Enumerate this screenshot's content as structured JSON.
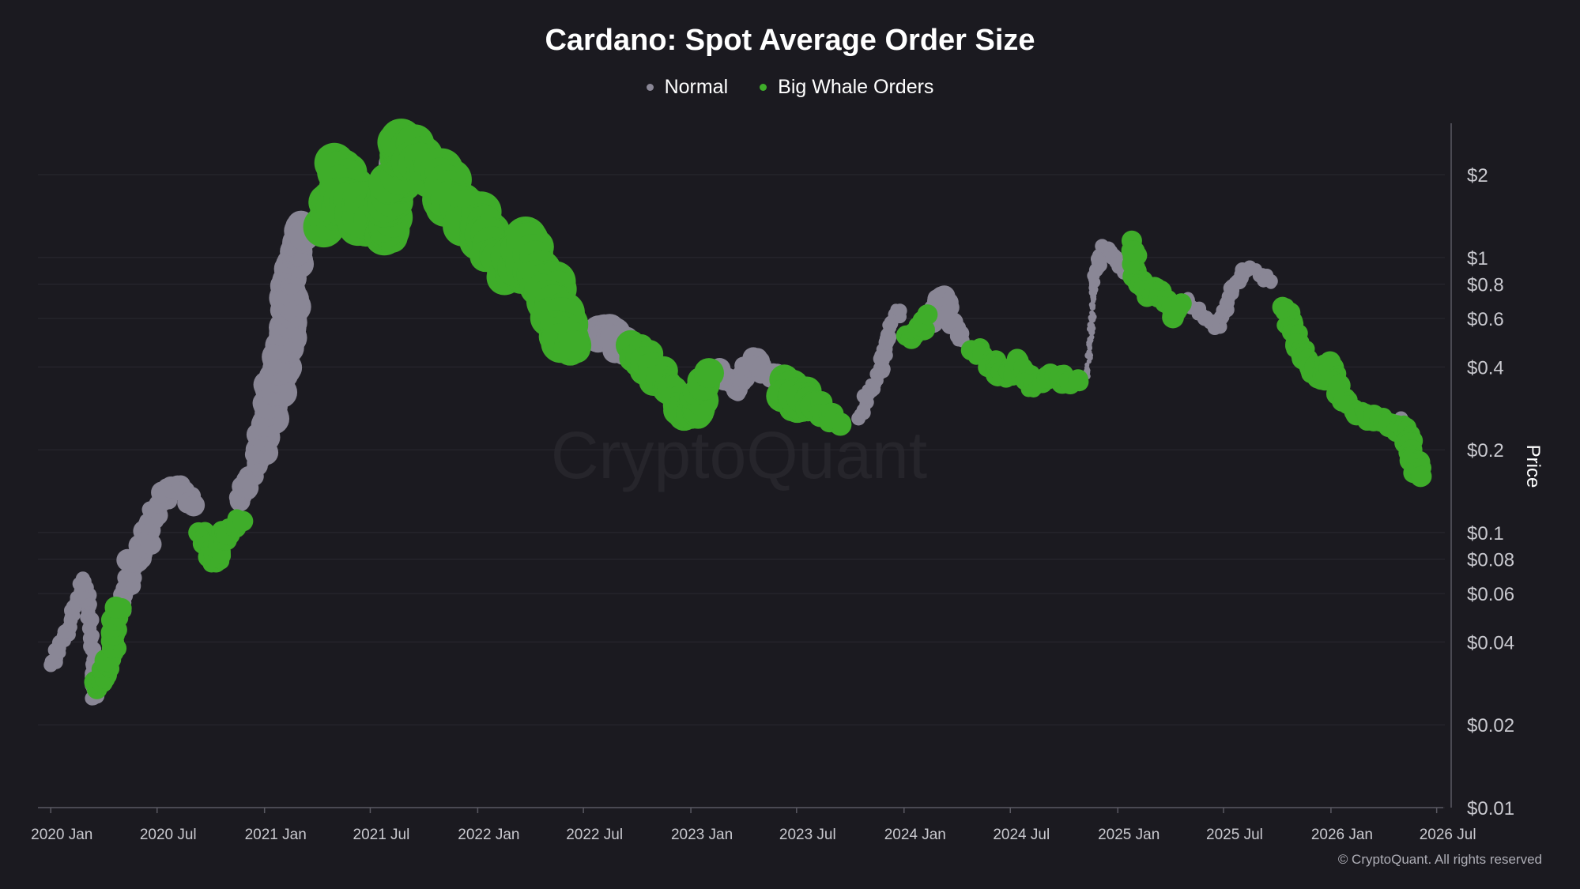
{
  "colors": {
    "background": "#1b1a20",
    "normal": "#8a8796",
    "whale": "#3fad2a",
    "grid": "#2a2930",
    "axis": "#5a5962",
    "text": "#ffffff",
    "tick_text": "#c9c9cf",
    "watermark": "#26252b"
  },
  "watermark": "CryptoQuant",
  "copyright": "© CryptoQuant. All rights reserved",
  "chart_data": {
    "type": "scatter",
    "title": "Cardano: Spot Average Order Size",
    "ylabel": "Price",
    "yscale": "log",
    "ylim": [
      0.01,
      3.2
    ],
    "xlim": [
      "2019-12-10",
      "2026-07-15"
    ],
    "grid": "horizontal",
    "legend_position": "top-center",
    "x_ticks": [
      {
        "label": "2020 Jan",
        "date": "2020-01-01"
      },
      {
        "label": "2020 Jul",
        "date": "2020-07-01"
      },
      {
        "label": "2021 Jan",
        "date": "2021-01-01"
      },
      {
        "label": "2021 Jul",
        "date": "2021-07-01"
      },
      {
        "label": "2022 Jan",
        "date": "2022-01-01"
      },
      {
        "label": "2022 Jul",
        "date": "2022-07-01"
      },
      {
        "label": "2023 Jan",
        "date": "2023-01-01"
      },
      {
        "label": "2023 Jul",
        "date": "2023-07-01"
      },
      {
        "label": "2024 Jan",
        "date": "2024-01-01"
      },
      {
        "label": "2024 Jul",
        "date": "2024-07-01"
      },
      {
        "label": "2025 Jan",
        "date": "2025-01-01"
      },
      {
        "label": "2025 Jul",
        "date": "2025-07-01"
      },
      {
        "label": "2026 Jan",
        "date": "2026-01-01"
      },
      {
        "label": "2026 Jul",
        "date": "2026-07-01"
      }
    ],
    "y_ticks": [
      {
        "label": "$2",
        "value": 2
      },
      {
        "label": "$1",
        "value": 1
      },
      {
        "label": "$0.8",
        "value": 0.8
      },
      {
        "label": "$0.6",
        "value": 0.6
      },
      {
        "label": "$0.4",
        "value": 0.4
      },
      {
        "label": "$0.2",
        "value": 0.2
      },
      {
        "label": "$0.1",
        "value": 0.1
      },
      {
        "label": "$0.08",
        "value": 0.08
      },
      {
        "label": "$0.06",
        "value": 0.06
      },
      {
        "label": "$0.04",
        "value": 0.04
      },
      {
        "label": "$0.02",
        "value": 0.02
      },
      {
        "label": "$0.01",
        "value": 0.01
      }
    ],
    "series": [
      {
        "name": "Normal",
        "color": "#8a8796",
        "points": [
          [
            "2020-01-01",
            0.033,
            "small"
          ],
          [
            "2020-01-15",
            0.038,
            "small"
          ],
          [
            "2020-02-01",
            0.045,
            "small"
          ],
          [
            "2020-02-15",
            0.058,
            "small"
          ],
          [
            "2020-02-25",
            0.068,
            "small"
          ],
          [
            "2020-03-05",
            0.058,
            "small"
          ],
          [
            "2020-03-12",
            0.042,
            "small"
          ],
          [
            "2020-03-14",
            0.025,
            "small"
          ],
          [
            "2020-03-20",
            0.028,
            "small"
          ],
          [
            "2020-05-01",
            0.052,
            "small"
          ],
          [
            "2020-05-20",
            0.078,
            "medium"
          ],
          [
            "2020-06-10",
            0.088,
            "medium"
          ],
          [
            "2020-06-25",
            0.115,
            "medium"
          ],
          [
            "2020-07-10",
            0.13,
            "medium"
          ],
          [
            "2020-07-25",
            0.145,
            "medium"
          ],
          [
            "2020-08-05",
            0.148,
            "medium"
          ],
          [
            "2020-08-20",
            0.138,
            "medium"
          ],
          [
            "2020-09-01",
            0.125,
            "medium"
          ],
          [
            "2020-11-20",
            0.13,
            "medium"
          ],
          [
            "2020-12-05",
            0.16,
            "medium"
          ],
          [
            "2020-12-20",
            0.175,
            "medium"
          ],
          [
            "2021-01-05",
            0.25,
            "large"
          ],
          [
            "2021-01-15",
            0.33,
            "large"
          ],
          [
            "2021-01-25",
            0.36,
            "large"
          ],
          [
            "2021-02-05",
            0.5,
            "large"
          ],
          [
            "2021-02-15",
            0.75,
            "large"
          ],
          [
            "2021-02-22",
            1.05,
            "large"
          ],
          [
            "2021-03-01",
            1.25,
            "large"
          ],
          [
            "2021-03-10",
            1.2,
            "large"
          ],
          [
            "2021-08-15",
            2.0,
            "large"
          ],
          [
            "2021-08-25",
            2.5,
            "large"
          ],
          [
            "2021-09-02",
            2.7,
            "large"
          ],
          [
            "2021-09-10",
            2.5,
            "large"
          ],
          [
            "2021-09-25",
            2.2,
            "large"
          ],
          [
            "2021-11-15",
            1.8,
            "large"
          ],
          [
            "2022-04-10",
            1.0,
            "large"
          ],
          [
            "2022-07-20",
            0.52,
            "large"
          ],
          [
            "2022-08-15",
            0.55,
            "large"
          ],
          [
            "2022-09-10",
            0.46,
            "large"
          ],
          [
            "2022-12-05",
            0.32,
            "medium"
          ],
          [
            "2022-12-20",
            0.29,
            "medium"
          ],
          [
            "2023-02-15",
            0.39,
            "medium"
          ],
          [
            "2023-03-05",
            0.36,
            "medium"
          ],
          [
            "2023-03-20",
            0.33,
            "medium"
          ],
          [
            "2023-04-10",
            0.4,
            "medium"
          ],
          [
            "2023-04-25",
            0.43,
            "medium"
          ],
          [
            "2023-05-10",
            0.38,
            "medium"
          ],
          [
            "2023-06-01",
            0.37,
            "medium"
          ],
          [
            "2023-10-15",
            0.26,
            "small"
          ],
          [
            "2023-11-01",
            0.32,
            "small"
          ],
          [
            "2023-11-20",
            0.38,
            "small"
          ],
          [
            "2023-12-10",
            0.58,
            "small"
          ],
          [
            "2023-12-25",
            0.64,
            "small"
          ],
          [
            "2024-02-20",
            0.58,
            "medium"
          ],
          [
            "2024-03-05",
            0.72,
            "medium"
          ],
          [
            "2024-03-15",
            0.62,
            "medium"
          ],
          [
            "2024-04-10",
            0.5,
            "small"
          ],
          [
            "2024-11-10",
            0.37,
            "tiny"
          ],
          [
            "2024-11-15",
            0.5,
            "tiny"
          ],
          [
            "2024-11-20",
            0.72,
            "tiny"
          ],
          [
            "2024-11-25",
            0.9,
            "small"
          ],
          [
            "2024-12-05",
            1.1,
            "small"
          ],
          [
            "2024-12-20",
            1.05,
            "small"
          ],
          [
            "2025-01-05",
            0.95,
            "small"
          ],
          [
            "2025-01-20",
            0.88,
            "small"
          ],
          [
            "2025-05-01",
            0.7,
            "small"
          ],
          [
            "2025-05-15",
            0.65,
            "small"
          ],
          [
            "2025-06-10",
            0.58,
            "small"
          ],
          [
            "2025-06-25",
            0.56,
            "small"
          ],
          [
            "2025-07-10",
            0.72,
            "small"
          ],
          [
            "2025-07-25",
            0.82,
            "small"
          ],
          [
            "2025-08-15",
            0.92,
            "small"
          ],
          [
            "2025-09-01",
            0.86,
            "small"
          ],
          [
            "2025-09-20",
            0.82,
            "small"
          ],
          [
            "2026-05-01",
            0.26,
            "small"
          ]
        ]
      },
      {
        "name": "Big Whale Orders",
        "color": "#3fad2a",
        "points": [
          [
            "2020-03-20",
            0.027,
            "medium"
          ],
          [
            "2020-04-05",
            0.033,
            "medium"
          ],
          [
            "2020-04-15",
            0.038,
            "medium"
          ],
          [
            "2020-04-22",
            0.048,
            "medium"
          ],
          [
            "2020-05-01",
            0.053,
            "medium"
          ],
          [
            "2020-09-10",
            0.1,
            "medium"
          ],
          [
            "2020-09-25",
            0.09,
            "medium"
          ],
          [
            "2020-10-10",
            0.078,
            "medium"
          ],
          [
            "2020-10-25",
            0.1,
            "medium"
          ],
          [
            "2020-11-10",
            0.105,
            "medium"
          ],
          [
            "2020-11-25",
            0.11,
            "medium"
          ],
          [
            "2021-04-15",
            1.3,
            "huge"
          ],
          [
            "2021-05-01",
            1.5,
            "huge"
          ],
          [
            "2021-05-15",
            2.1,
            "huge"
          ],
          [
            "2021-05-25",
            1.6,
            "huge"
          ],
          [
            "2021-06-10",
            1.3,
            "huge"
          ],
          [
            "2021-06-25",
            1.6,
            "huge"
          ],
          [
            "2021-07-10",
            1.4,
            "huge"
          ],
          [
            "2021-07-25",
            1.2,
            "huge"
          ],
          [
            "2021-08-10",
            1.7,
            "huge"
          ],
          [
            "2021-08-20",
            2.3,
            "huge"
          ],
          [
            "2021-08-30",
            2.6,
            "huge"
          ],
          [
            "2021-10-05",
            2.1,
            "huge"
          ],
          [
            "2021-11-01",
            2.0,
            "huge"
          ],
          [
            "2021-11-20",
            1.6,
            "huge"
          ],
          [
            "2021-12-10",
            1.4,
            "huge"
          ],
          [
            "2022-01-05",
            1.3,
            "huge"
          ],
          [
            "2022-01-25",
            1.1,
            "huge"
          ],
          [
            "2022-02-15",
            1.0,
            "huge"
          ],
          [
            "2022-03-05",
            0.88,
            "huge"
          ],
          [
            "2022-03-25",
            1.15,
            "huge"
          ],
          [
            "2022-04-20",
            0.9,
            "huge"
          ],
          [
            "2022-05-10",
            0.65,
            "huge"
          ],
          [
            "2022-05-25",
            0.52,
            "huge"
          ],
          [
            "2022-06-15",
            0.48,
            "large"
          ],
          [
            "2022-09-20",
            0.48,
            "large"
          ],
          [
            "2022-10-15",
            0.42,
            "large"
          ],
          [
            "2022-11-10",
            0.36,
            "large"
          ],
          [
            "2022-11-25",
            0.33,
            "large"
          ],
          [
            "2023-01-01",
            0.27,
            "large"
          ],
          [
            "2023-01-20",
            0.34,
            "large"
          ],
          [
            "2023-02-01",
            0.38,
            "large"
          ],
          [
            "2023-06-10",
            0.36,
            "large"
          ],
          [
            "2023-06-25",
            0.29,
            "large"
          ],
          [
            "2023-07-10",
            0.31,
            "large"
          ],
          [
            "2023-08-01",
            0.29,
            "large"
          ],
          [
            "2023-08-25",
            0.27,
            "medium"
          ],
          [
            "2023-09-15",
            0.25,
            "medium"
          ],
          [
            "2024-01-05",
            0.52,
            "medium"
          ],
          [
            "2024-01-25",
            0.55,
            "medium"
          ],
          [
            "2024-02-10",
            0.62,
            "medium"
          ],
          [
            "2024-04-25",
            0.46,
            "medium"
          ],
          [
            "2024-05-15",
            0.44,
            "medium"
          ],
          [
            "2024-06-05",
            0.4,
            "medium"
          ],
          [
            "2024-06-25",
            0.37,
            "medium"
          ],
          [
            "2024-07-15",
            0.42,
            "medium"
          ],
          [
            "2024-08-05",
            0.34,
            "medium"
          ],
          [
            "2024-08-25",
            0.35,
            "medium"
          ],
          [
            "2024-09-15",
            0.37,
            "medium"
          ],
          [
            "2024-10-05",
            0.35,
            "medium"
          ],
          [
            "2024-10-25",
            0.36,
            "medium"
          ],
          [
            "2025-01-25",
            1.15,
            "medium"
          ],
          [
            "2025-02-05",
            0.8,
            "medium"
          ],
          [
            "2025-02-20",
            0.72,
            "medium"
          ],
          [
            "2025-03-05",
            0.78,
            "medium"
          ],
          [
            "2025-03-20",
            0.7,
            "medium"
          ],
          [
            "2025-04-05",
            0.62,
            "medium"
          ],
          [
            "2025-04-20",
            0.68,
            "medium"
          ],
          [
            "2025-10-10",
            0.66,
            "medium"
          ],
          [
            "2025-10-25",
            0.56,
            "medium"
          ],
          [
            "2025-11-10",
            0.46,
            "medium"
          ],
          [
            "2025-11-25",
            0.4,
            "medium"
          ],
          [
            "2025-12-15",
            0.36,
            "medium"
          ],
          [
            "2026-01-01",
            0.41,
            "medium"
          ],
          [
            "2026-01-20",
            0.3,
            "medium"
          ],
          [
            "2026-02-10",
            0.28,
            "medium"
          ],
          [
            "2026-03-01",
            0.27,
            "medium"
          ],
          [
            "2026-03-25",
            0.26,
            "medium"
          ],
          [
            "2026-04-10",
            0.25,
            "medium"
          ],
          [
            "2026-05-10",
            0.24,
            "medium"
          ],
          [
            "2026-05-20",
            0.2,
            "medium"
          ],
          [
            "2026-05-28",
            0.17,
            "medium"
          ],
          [
            "2026-06-05",
            0.16,
            "medium"
          ]
        ]
      }
    ]
  }
}
